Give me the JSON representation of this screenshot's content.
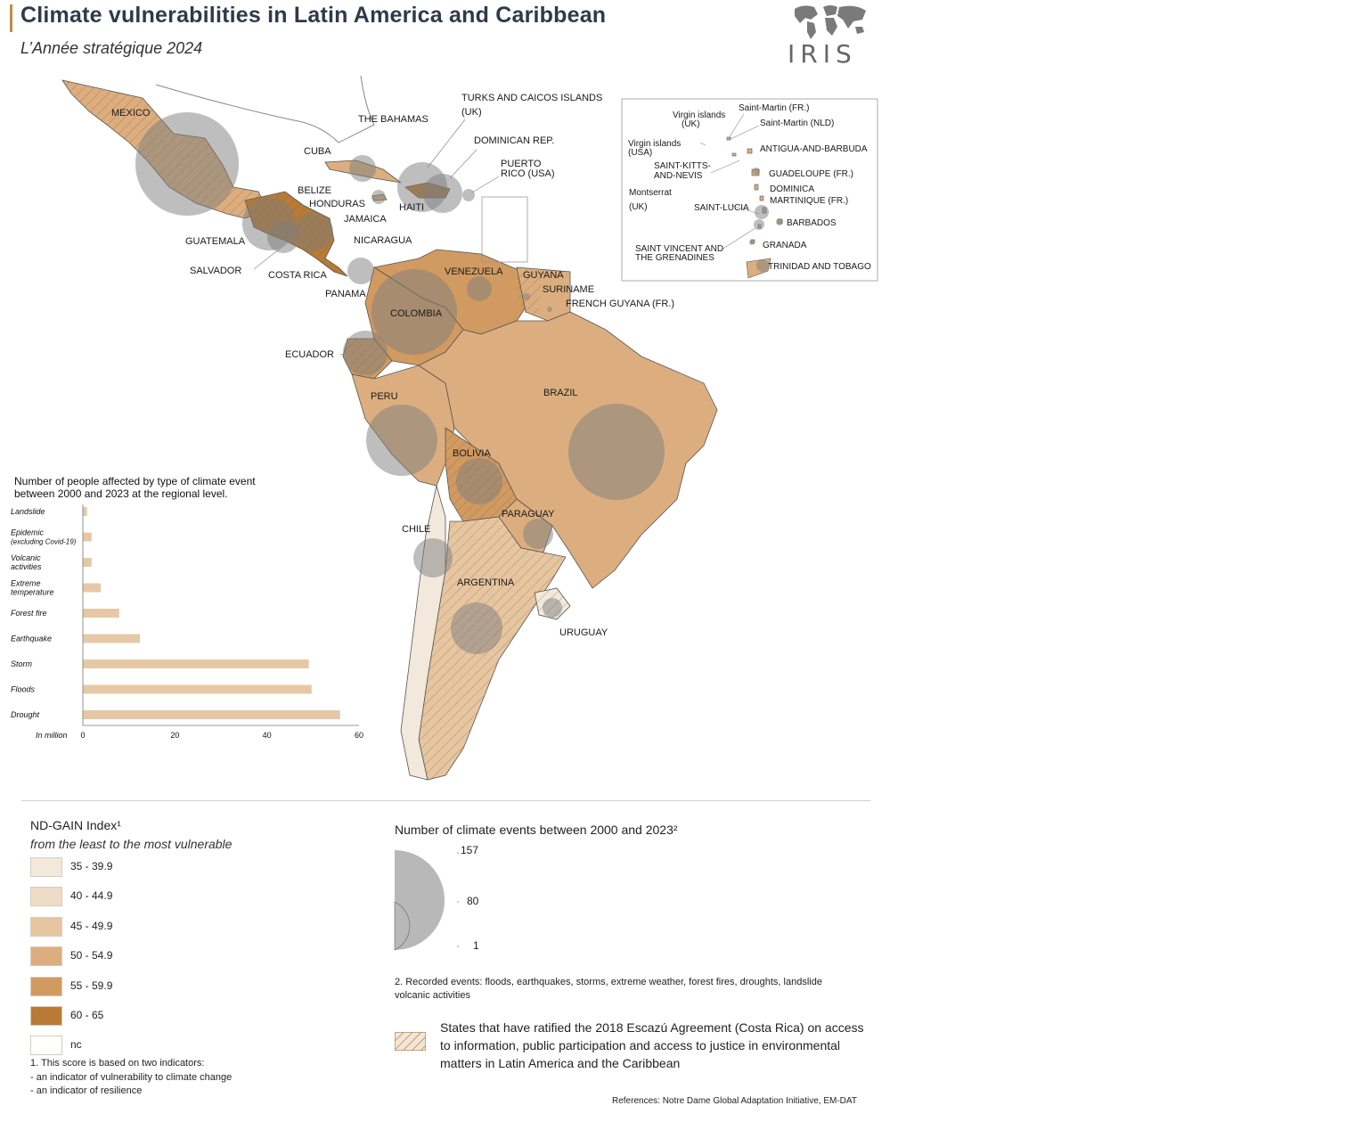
{
  "header": {
    "title": "Climate vulnerabilities in Latin America and Caribbean",
    "subtitle": "L’Année stratégique 2024",
    "logo_text": "IRIS"
  },
  "colors": {
    "c35": "#f2e8dc",
    "c40": "#efdcc6",
    "c45": "#e6c6a1",
    "c50": "#dcae7f",
    "c55": "#d19a61",
    "c60": "#b97a35",
    "bubble": "#7d7d7d",
    "bar": "#e7c8a6"
  },
  "map": {
    "country_labels": {
      "mexico": "MEXICO",
      "cuba": "CUBA",
      "bahamas": "THE BAHAMAS",
      "turks": "TURKS AND CAICOS ISLANDS",
      "turks2": "(UK)",
      "dominican": "DOMINICAN REP.",
      "puerto": "PUERTO",
      "puerto2": "RICO (USA)",
      "belize": "BELIZE",
      "honduras": "HONDURAS",
      "haiti": "HAITI",
      "jamaica": "JAMAICA",
      "guatemala": "GUATEMALA",
      "nicaragua": "NICARAGUA",
      "salvador": "SALVADOR",
      "costarica": "COSTA RICA",
      "panama": "PANAMA",
      "venezuela": "VENEZUELA",
      "guyana": "GUYANA",
      "suriname": "SURINAME",
      "frenchguyana": "FRENCH GUYANA (FR.)",
      "colombia": "COLOMBIA",
      "ecuador": "ECUADOR",
      "peru": "PERU",
      "brazil": "BRAZIL",
      "bolivia": "BOLIVIA",
      "paraguay": "PARAGUAY",
      "chile": "CHILE",
      "argentina": "ARGENTINA",
      "uruguay": "URUGUAY"
    },
    "inset_labels": {
      "saintmartin_fr": "Saint-Martin (FR.)",
      "saintmartin_nld": "Saint-Martin (NLD)",
      "virgin_uk": "Virgin islands",
      "virgin_uk2": "(UK)",
      "virgin_usa": "Virgin islands",
      "virgin_usa2": "(USA)",
      "antigua": "ANTIGUA-AND-BARBUDA",
      "stkitts": "SAINT-KITTS-",
      "stkitts2": "AND-NEVIS",
      "guadeloupe": "GUADELOUPE (FR.)",
      "montserrat": "Montserrat",
      "montserrat2": "(UK)",
      "dominica": "DOMINICA",
      "martinique": "MARTINIQUE (FR.)",
      "stlucia": "SAINT-LUCIA",
      "barbados": "BARBADOS",
      "stvincent": "SAINT VINCENT AND",
      "stvincent2": "THE GRENADINES",
      "granada": "GRANADA",
      "trinidad": "TRINIDAD AND TOBAGO"
    }
  },
  "chart_data": {
    "type": "bar",
    "title": "Number of people affected by type of climate event between 2000 and 2023 at the regional level.",
    "title_line1": "Number of people affected by type of climate event",
    "title_line2": "between 2000 and 2023 at the regional level.",
    "orientation": "horizontal",
    "categories": [
      "Landslide",
      "Epidemic (excluding Covid-19)",
      "Volcanic activities",
      "Extreme temperature",
      "Forest fire",
      "Earthquake",
      "Storm",
      "Floods",
      "Drought"
    ],
    "category_lines": [
      [
        "Landslide"
      ],
      [
        "Epidemic",
        "(excluding Covid-19)"
      ],
      [
        "Volcanic",
        "activities"
      ],
      [
        "Extreme",
        "temperature"
      ],
      [
        "Forest fire"
      ],
      [
        "Earthquake"
      ],
      [
        "Storm"
      ],
      [
        "Floods"
      ],
      [
        "Drought"
      ]
    ],
    "values": [
      0.8,
      1.8,
      1.8,
      3.8,
      7.8,
      12.3,
      49.0,
      49.6,
      55.8
    ],
    "xlabel": "In million",
    "xlim": [
      0,
      60
    ],
    "ticks": [
      "0",
      "20",
      "40",
      "60"
    ],
    "grid": false
  },
  "legend": {
    "ndgain_title": "ND-GAIN Index¹",
    "ndgain_sub": "from the least to the most vulnerable",
    "classes": [
      {
        "label": "35 - 39.9",
        "color": "#f2e8dc"
      },
      {
        "label": "40 - 44.9",
        "color": "#efdcc6"
      },
      {
        "label": "45 - 49.9",
        "color": "#e6c6a1"
      },
      {
        "label": "50 - 54.9",
        "color": "#dcae7f"
      },
      {
        "label": "55 - 59.9",
        "color": "#d19a61"
      },
      {
        "label": "60 - 65",
        "color": "#b97a35"
      },
      {
        "label": "nc",
        "color": "#ffffff"
      }
    ],
    "note1": "1.  This score is based on two indicators:",
    "note1a": " - an indicator of vulnerability to climate change",
    "note1b": " - an indicator of resilience",
    "events_title": "Number of climate events between 2000 and 2023²",
    "events_max": "157",
    "events_mid": "80",
    "events_min": "1",
    "note2": "2. Recorded events: floods, earthquakes, storms, extreme weather, forest fires, droughts, landslide",
    "note2b": "volcanic activities",
    "escazu": "States that have ratified the 2018 Escazú Agreement (Costa Rica) on access to information, public participation and access to justice in environmental matters in Latin America and the Caribbean",
    "references": "References: Notre Dame Global Adaptation Initiative, EM-DAT"
  }
}
